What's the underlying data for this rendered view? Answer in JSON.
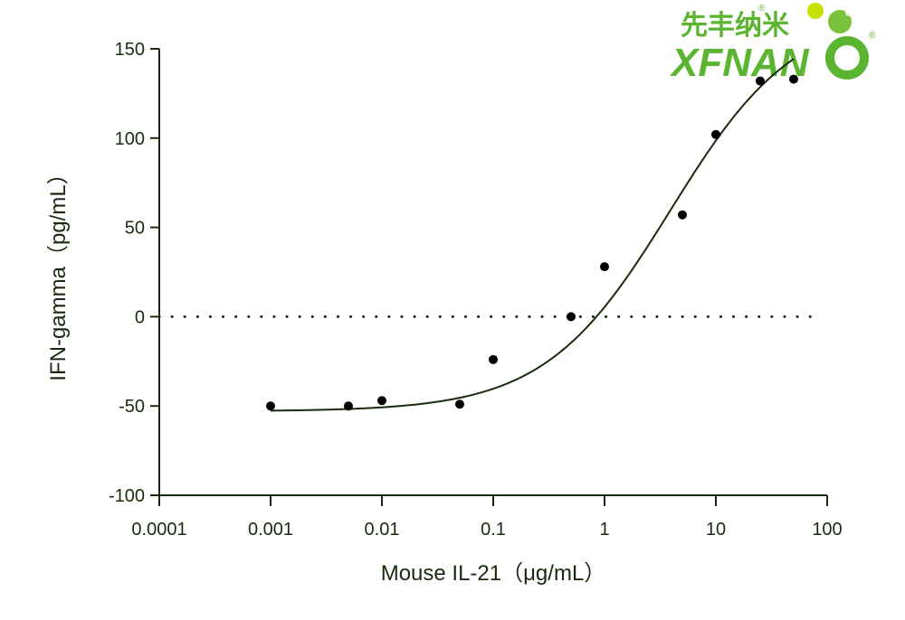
{
  "logo": {
    "cn_text": "先丰纳米",
    "en_text": "XFNAN",
    "registered": "®",
    "brand_color": "#5cb531",
    "accent_color": "#c8e000"
  },
  "chart_data": {
    "type": "scatter",
    "title": "",
    "xlabel": "Mouse IL-21（μg/mL）",
    "ylabel": "IFN-gamma（pg/mL）",
    "xscale": "log",
    "xlim": [
      0.0001,
      100
    ],
    "ylim": [
      -100,
      150
    ],
    "xticks": [
      0.0001,
      0.001,
      0.01,
      0.1,
      1,
      10,
      100
    ],
    "xtick_labels": [
      "0.0001",
      "0.001",
      "0.01",
      "0.1",
      "1",
      "10",
      "100"
    ],
    "yticks": [
      -100,
      -50,
      0,
      50,
      100,
      150
    ],
    "ytick_labels": [
      "-100",
      "-50",
      "0",
      "50",
      "100",
      "150"
    ],
    "grid": false,
    "series": [
      {
        "points": [
          {
            "x": 0.001,
            "y": -50
          },
          {
            "x": 0.005,
            "y": -50
          },
          {
            "x": 0.01,
            "y": -47
          },
          {
            "x": 0.05,
            "y": -49
          },
          {
            "x": 0.1,
            "y": -24
          },
          {
            "x": 0.5,
            "y": 0
          },
          {
            "x": 1,
            "y": 28
          },
          {
            "x": 5,
            "y": 57
          },
          {
            "x": 10,
            "y": 102
          },
          {
            "x": 25,
            "y": 132
          },
          {
            "x": 50,
            "y": 133
          }
        ]
      }
    ],
    "fit_curve": {
      "type": "sigmoid",
      "bottom": -53,
      "top": 172,
      "ec50": 3.9,
      "hill": 0.77,
      "x_range": [
        0.001,
        50
      ]
    },
    "reference_line": {
      "y": 0,
      "style": "dotted"
    },
    "colors": {
      "axis": "#1a2a10",
      "points": "#000000",
      "curve": "#1a2a10"
    }
  }
}
